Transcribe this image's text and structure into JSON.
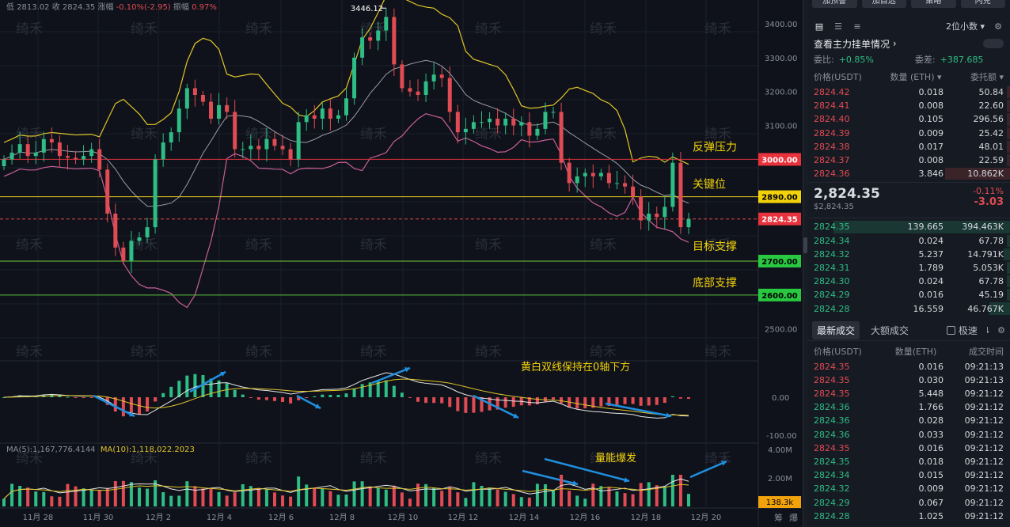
{
  "hud": {
    "low_label": "低",
    "low": "2813.02",
    "close_label": "收",
    "close": "2824.35",
    "change_label": "涨幅",
    "change": "-0.10%(-2.95)",
    "amp_label": "振幅",
    "amp": "0.97%"
  },
  "watermark": "绮禾",
  "price_axis": {
    "ticks": [
      "3400.00",
      "3300.00",
      "3200.00",
      "3100.00",
      "2500.00"
    ],
    "tick_values": [
      3400,
      3300,
      3200,
      3100,
      2500
    ],
    "range": [
      2420,
      3470
    ]
  },
  "levels": [
    {
      "value": 3000,
      "label": "3000.00",
      "color": "#e8323c",
      "line": "#d6303a",
      "text_color": "#ffffff",
      "annotation": "反弹压力"
    },
    {
      "value": 2890,
      "label": "2890.00",
      "color": "#f2d20b",
      "line": "#e6d020",
      "text_color": "#000000",
      "annotation": "关键位"
    },
    {
      "value": 2824.35,
      "label": "2824.35",
      "color": "#e8323c",
      "line": "#e14b53",
      "text_color": "#ffffff",
      "annotation": "",
      "dashed": true
    },
    {
      "value": 2700,
      "label": "2700.00",
      "color": "#28c840",
      "line": "#6fcc3a",
      "text_color": "#000000",
      "annotation": ""
    },
    {
      "value": 2600,
      "label": "2600.00",
      "color": "#28c840",
      "line": "#5cc23a",
      "text_color": "#000000",
      "annotation": "底部支撑"
    }
  ],
  "annotations": {
    "target_support": "目标支撑",
    "macd_note": "黄白双线保持在0轴下方",
    "volume_note": "量能爆发",
    "high_marker": "3446.12"
  },
  "macd_axis": {
    "ticks": [
      "0.00",
      "-100.00"
    ]
  },
  "volume_axis": {
    "ticks": [
      "4.00M",
      "2.00M"
    ],
    "last": "138.3k"
  },
  "volume_hud": {
    "ma5_label": "MA(5):",
    "ma5": "1,167,776.4144",
    "ma10_label": "MA(10):",
    "ma10": "1,118,022.2023"
  },
  "x_axis": {
    "labels": [
      "11月 28",
      "11月 30",
      "12月 2",
      "12月 4",
      "12月 6",
      "12月 8",
      "12月 10",
      "12月 12",
      "12月 14",
      "12月 16",
      "12月 18",
      "12月 20"
    ],
    "corner": [
      "筹",
      "爆"
    ]
  },
  "chart_data": {
    "type": "candlestick",
    "symbol_quote": "USDT",
    "levels": [
      3000,
      2890,
      2700,
      2600
    ],
    "last_price": 2824.35,
    "high_marker": 3446.12,
    "ylim": [
      2420,
      3470
    ],
    "candles_close_approx": [
      3000,
      3020,
      3045,
      3010,
      3020,
      3060,
      3050,
      3010,
      3005,
      3000,
      3010,
      3030,
      2970,
      2840,
      2740,
      2700,
      2760,
      2770,
      2800,
      3000,
      3050,
      3080,
      3150,
      3210,
      3190,
      3170,
      3120,
      3160,
      3140,
      3030,
      3030,
      3040,
      3030,
      3060,
      3040,
      3030,
      3000,
      3110,
      3130,
      3120,
      3150,
      3120,
      3130,
      3180,
      3300,
      3360,
      3350,
      3380,
      3420,
      3280,
      3210,
      3200,
      3190,
      3230,
      3250,
      3240,
      3140,
      3080,
      3090,
      3110,
      3110,
      3120,
      3100,
      3120,
      3100,
      3110,
      3070,
      3090,
      3140,
      3140,
      2990,
      2930,
      2950,
      2960,
      2950,
      2960,
      2930,
      2930,
      2920,
      2890,
      2820,
      2840,
      2830,
      2860,
      2990,
      2800,
      2824
    ]
  },
  "panel": {
    "top_buttons": [
      "加预警",
      "加自选",
      "策略",
      "闪兑"
    ],
    "precision": "2位小数",
    "main_force": "查看主力挂单情况",
    "ratio_label": "委比:",
    "ratio": "+0.85%",
    "diff_label": "委差:",
    "diff": "+387.685",
    "ob_headers": [
      "价格(USDT)",
      "数量 (ETH)",
      "委托额"
    ],
    "asks": [
      {
        "p": "2824.42",
        "q": "0.018",
        "t": "50.84"
      },
      {
        "p": "2824.41",
        "q": "0.008",
        "t": "22.60"
      },
      {
        "p": "2824.40",
        "q": "0.105",
        "t": "296.56"
      },
      {
        "p": "2824.39",
        "q": "0.009",
        "t": "25.42"
      },
      {
        "p": "2824.38",
        "q": "0.017",
        "t": "48.01"
      },
      {
        "p": "2824.37",
        "q": "0.008",
        "t": "22.59"
      },
      {
        "p": "2824.36",
        "q": "3.846",
        "t": "10.862K"
      }
    ],
    "last": {
      "price": "2,824.35",
      "usd": "$2,824.35",
      "pct": "-0.11%",
      "chg": "-3.03"
    },
    "bids": [
      {
        "p": "2824.35",
        "q": "139.665",
        "t": "394.463K"
      },
      {
        "p": "2824.34",
        "q": "0.024",
        "t": "67.78"
      },
      {
        "p": "2824.32",
        "q": "5.237",
        "t": "14.791K"
      },
      {
        "p": "2824.31",
        "q": "1.789",
        "t": "5.053K"
      },
      {
        "p": "2824.30",
        "q": "0.024",
        "t": "67.78"
      },
      {
        "p": "2824.29",
        "q": "0.016",
        "t": "45.19"
      },
      {
        "p": "2824.28",
        "q": "16.559",
        "t": "46.767K"
      }
    ],
    "tabs": [
      "最新成交",
      "大额成交"
    ],
    "fast_label": "极速",
    "tr_headers": [
      "价格(USDT)",
      "数量(ETH)",
      "成交时间"
    ],
    "trades": [
      {
        "p": "2824.35",
        "q": "0.016",
        "t": "09:21:13",
        "side": "sell"
      },
      {
        "p": "2824.35",
        "q": "0.030",
        "t": "09:21:13",
        "side": "sell"
      },
      {
        "p": "2824.35",
        "q": "5.448",
        "t": "09:21:12",
        "side": "sell"
      },
      {
        "p": "2824.36",
        "q": "1.766",
        "t": "09:21:12",
        "side": "buy"
      },
      {
        "p": "2824.36",
        "q": "0.028",
        "t": "09:21:12",
        "side": "buy"
      },
      {
        "p": "2824.36",
        "q": "0.033",
        "t": "09:21:12",
        "side": "buy"
      },
      {
        "p": "2824.35",
        "q": "0.016",
        "t": "09:21:12",
        "side": "sell"
      },
      {
        "p": "2824.35",
        "q": "0.018",
        "t": "09:21:12",
        "side": "buy"
      },
      {
        "p": "2824.34",
        "q": "0.015",
        "t": "09:21:12",
        "side": "buy"
      },
      {
        "p": "2824.32",
        "q": "0.009",
        "t": "09:21:12",
        "side": "buy"
      },
      {
        "p": "2824.29",
        "q": "0.067",
        "t": "09:21:12",
        "side": "buy"
      },
      {
        "p": "2824.28",
        "q": "1.025",
        "t": "09:21:12",
        "side": "buy"
      }
    ]
  },
  "colors": {
    "up": "#2ebd85",
    "down": "#e14b53",
    "boll_upper": "#e0c52a",
    "boll_mid": "#9a9aa8",
    "boll_lower": "#c8609a",
    "macd_dif": "#e6e6e6",
    "macd_dea": "#e0c52a",
    "arrow": "#1f8fe0"
  }
}
